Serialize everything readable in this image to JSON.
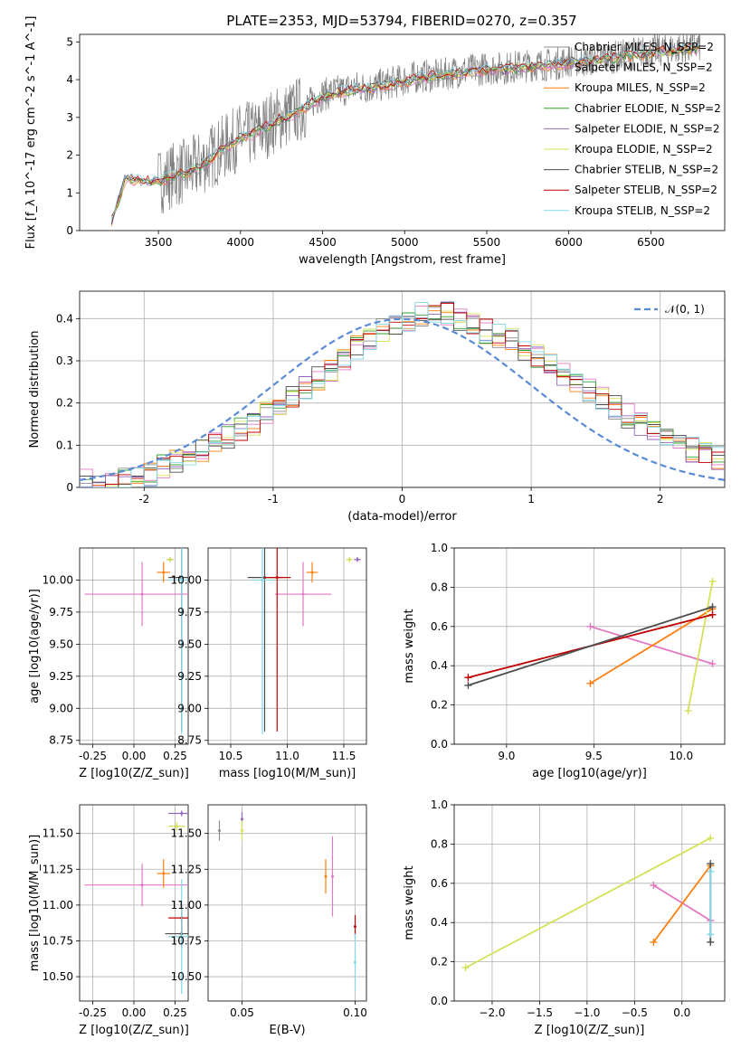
{
  "figure_title": "PLATE=2353, MJD=53794, FIBERID=0270, z=0.357",
  "series_colors": {
    "Chabrier MILES": "#8c8c8c",
    "Salpeter MILES": "#e377c2",
    "Kroupa MILES": "#ff7f0e",
    "Chabrier ELODIE": "#2ca02c",
    "Salpeter ELODIE": "#9467bd",
    "Kroupa ELODIE": "#d4e157",
    "Chabrier STELIB": "#4d4d4d",
    "Salpeter STELIB": "#c00000",
    "Kroupa STELIB": "#80d8e8"
  },
  "chart_data": [
    {
      "type": "line",
      "panel": "spectrum",
      "xlabel": "wavelength [Angstrom, rest frame]",
      "ylabel": "Flux [f_λ 10^-17 erg cm^-2 s^-1 A^-1]",
      "xlim": [
        3020,
        6950
      ],
      "ylim": [
        0,
        5.2
      ],
      "xticks": [
        3500,
        4000,
        4500,
        5000,
        5500,
        6000,
        6500
      ],
      "yticks": [
        0,
        1,
        2,
        3,
        4,
        5
      ],
      "legend_position": "right",
      "legend_entries": [
        "Chabrier MILES, N_SSP=2",
        "Salpeter MILES, N_SSP=2",
        "Kroupa MILES, N_SSP=2",
        "Chabrier ELODIE, N_SSP=2",
        "Salpeter ELODIE, N_SSP=2",
        "Kroupa ELODIE, N_SSP=2",
        "Chabrier STELIB, N_SSP=2",
        "Salpeter STELIB, N_SSP=2",
        "Kroupa STELIB, N_SSP=2"
      ],
      "data_x": [
        3200,
        3300,
        3400,
        3500,
        3600,
        3700,
        3800,
        3900,
        4000,
        4100,
        4200,
        4300,
        4400,
        4500,
        4600,
        4700,
        4800,
        4900,
        5000,
        5100,
        5200,
        5300,
        5400,
        5500,
        5600,
        5700,
        5800,
        5900,
        6000,
        6100,
        6200,
        6300,
        6400,
        6500,
        6600,
        6700,
        6800
      ],
      "data_y": [
        0,
        1.4,
        1.35,
        1.3,
        1.5,
        1.6,
        1.9,
        2.2,
        2.5,
        2.6,
        2.9,
        3.1,
        3.3,
        3.6,
        3.7,
        3.8,
        3.8,
        3.9,
        4.0,
        4.1,
        4.1,
        4.2,
        4.25,
        4.3,
        4.3,
        4.35,
        4.4,
        4.4,
        4.5,
        4.5,
        4.6,
        4.6,
        4.7,
        4.75,
        4.8,
        4.85,
        4.9
      ],
      "model_y": [
        0,
        1.4,
        1.32,
        1.28,
        1.45,
        1.55,
        1.85,
        2.15,
        2.45,
        2.6,
        2.85,
        3.05,
        3.25,
        3.55,
        3.65,
        3.75,
        3.78,
        3.85,
        3.95,
        4.05,
        4.07,
        4.15,
        4.2,
        4.25,
        4.27,
        4.3,
        4.35,
        4.36,
        4.45,
        4.47,
        4.55,
        4.57,
        4.65,
        4.7,
        4.75,
        4.8,
        4.85
      ]
    },
    {
      "type": "line",
      "panel": "residual-histogram",
      "xlabel": "(data-model)/error",
      "ylabel": "Normed distribution",
      "xlim": [
        -2.5,
        2.5
      ],
      "ylim": [
        0,
        0.465
      ],
      "xticks": [
        -2,
        -1,
        0,
        1,
        2
      ],
      "yticks": [
        0.0,
        0.1,
        0.2,
        0.3,
        0.4
      ],
      "grid": true,
      "legend_position": "top-right",
      "legend_entries": [
        "𝒩(0, 1)"
      ],
      "gaussian": {
        "mean": 0,
        "sigma": 1
      },
      "bin_width": 0.1,
      "bins_start": -2.5,
      "hist_values": [
        0.015,
        0.01,
        0.015,
        0.02,
        0.02,
        0.03,
        0.05,
        0.06,
        0.08,
        0.09,
        0.1,
        0.12,
        0.14,
        0.15,
        0.18,
        0.2,
        0.22,
        0.24,
        0.26,
        0.28,
        0.3,
        0.33,
        0.35,
        0.37,
        0.39,
        0.4,
        0.41,
        0.42,
        0.41,
        0.4,
        0.39,
        0.37,
        0.36,
        0.35,
        0.33,
        0.31,
        0.29,
        0.27,
        0.25,
        0.23,
        0.21,
        0.19,
        0.17,
        0.15,
        0.13,
        0.12,
        0.1,
        0.09,
        0.08,
        0.07
      ]
    },
    {
      "type": "scatter",
      "panel": "Z-vs-age",
      "xlabel": "Z [log10(Z/Z_sun)]",
      "ylabel": "age [log10(age/yr)]",
      "xlim": [
        -0.33,
        0.33
      ],
      "ylim": [
        8.72,
        10.25
      ],
      "xticks": [
        "-0.25",
        "0.00",
        "0.25"
      ],
      "yticks": [
        "8.75",
        "9.00",
        "9.25",
        "9.50",
        "9.75",
        "10.00"
      ],
      "grid": true,
      "points": [
        {
          "series": "Salpeter MILES",
          "x": 0.05,
          "y": 9.89,
          "xerr": 0.35,
          "yerr": 0.25
        },
        {
          "series": "Kroupa MILES",
          "x": 0.18,
          "y": 10.06,
          "xerr": 0.04,
          "yerr": 0.08
        },
        {
          "series": "Salpeter ELODIE",
          "x": 0.22,
          "y": 10.16,
          "xerr": 0.02,
          "yerr": 0.02
        },
        {
          "series": "Kroupa ELODIE",
          "x": 0.22,
          "y": 10.16,
          "xerr": 0.02,
          "yerr": 0.02
        },
        {
          "series": "Chabrier STELIB",
          "x": 0.29,
          "y": 10.02,
          "xerr": 0.08,
          "yerr": 1.2
        },
        {
          "series": "Kroupa STELIB",
          "x": 0.29,
          "y": 10.0,
          "xerr": 0.08,
          "yerr": 1.2
        }
      ]
    },
    {
      "type": "scatter",
      "panel": "mass-vs-age",
      "xlabel": "mass [log10(M/M_sun)]",
      "ylabel": "",
      "xlim": [
        10.3,
        11.7
      ],
      "ylim": [
        8.72,
        10.25
      ],
      "xticks": [
        "10.5",
        "11.0",
        "11.5"
      ],
      "yticks": [
        "8.75",
        "9.00",
        "9.25",
        "9.50",
        "9.75",
        "10.00"
      ],
      "grid": true,
      "points": [
        {
          "series": "Salpeter MILES",
          "x": 11.14,
          "y": 9.89,
          "xerr": 0.25,
          "yerr": 0.25
        },
        {
          "series": "Kroupa MILES",
          "x": 11.22,
          "y": 10.06,
          "xerr": 0.05,
          "yerr": 0.08
        },
        {
          "series": "Salpeter ELODIE",
          "x": 11.62,
          "y": 10.16,
          "xerr": 0.03,
          "yerr": 0.02
        },
        {
          "series": "Kroupa ELODIE",
          "x": 11.55,
          "y": 10.16,
          "xerr": 0.03,
          "yerr": 0.02
        },
        {
          "series": "Chabrier STELIB",
          "x": 10.8,
          "y": 10.02,
          "xerr": 0.15,
          "yerr": 1.2
        },
        {
          "series": "Salpeter STELIB",
          "x": 10.91,
          "y": 10.02,
          "xerr": 0.12,
          "yerr": 1.2
        },
        {
          "series": "Kroupa STELIB",
          "x": 10.78,
          "y": 10.0,
          "xerr": 0.1,
          "yerr": 1.2
        }
      ]
    },
    {
      "type": "line",
      "panel": "age-vs-mass-weight",
      "xlabel": "age [log10(age/yr)]",
      "ylabel": "mass weight",
      "xlim": [
        8.7,
        10.25
      ],
      "ylim": [
        0,
        1
      ],
      "xticks": [
        "9.0",
        "9.5",
        "10.0"
      ],
      "yticks": [
        "0.0",
        "0.2",
        "0.4",
        "0.6",
        "0.8",
        "1.0"
      ],
      "grid": true,
      "series": [
        {
          "series": "Salpeter MILES",
          "x": [
            9.48,
            10.18
          ],
          "y": [
            0.6,
            0.41
          ]
        },
        {
          "series": "Kroupa MILES",
          "x": [
            9.48,
            10.18
          ],
          "y": [
            0.31,
            0.69
          ]
        },
        {
          "series": "Kroupa ELODIE",
          "x": [
            10.04,
            10.18
          ],
          "y": [
            0.17,
            0.83
          ]
        },
        {
          "series": "Salpeter STELIB",
          "x": [
            8.78,
            10.18
          ],
          "y": [
            0.34,
            0.66
          ]
        },
        {
          "series": "Chabrier STELIB",
          "x": [
            8.78,
            10.18
          ],
          "y": [
            0.3,
            0.7
          ]
        }
      ]
    },
    {
      "type": "scatter",
      "panel": "Z-vs-mass",
      "xlabel": "Z [log10(Z/Z_sun)]",
      "ylabel": "mass [log10(M/M_sun)]",
      "xlim": [
        -0.33,
        0.33
      ],
      "ylim": [
        10.33,
        11.7
      ],
      "xticks": [
        "-0.25",
        "0.00",
        "0.25"
      ],
      "yticks": [
        "10.50",
        "10.75",
        "11.00",
        "11.25",
        "11.50"
      ],
      "grid": true,
      "points": [
        {
          "series": "Salpeter MILES",
          "x": 0.05,
          "y": 11.14,
          "xerr": 0.35,
          "yerr": 0.15
        },
        {
          "series": "Kroupa MILES",
          "x": 0.18,
          "y": 11.22,
          "xerr": 0.04,
          "yerr": 0.1
        },
        {
          "series": "Salpeter ELODIE",
          "x": 0.29,
          "y": 11.64,
          "xerr": 0.08,
          "yerr": 0.02
        },
        {
          "series": "Kroupa ELODIE",
          "x": 0.26,
          "y": 11.55,
          "xerr": 0.05,
          "yerr": 0.03
        },
        {
          "series": "Chabrier STELIB",
          "x": 0.29,
          "y": 10.8,
          "xerr": 0.1,
          "yerr": 0.1
        },
        {
          "series": "Salpeter STELIB",
          "x": 0.29,
          "y": 10.91,
          "xerr": 0.08,
          "yerr": 0.1
        },
        {
          "series": "Kroupa STELIB",
          "x": 0.29,
          "y": 10.78,
          "xerr": 0.08,
          "yerr": 0.4
        }
      ]
    },
    {
      "type": "scatter",
      "panel": "EBV-vs-mass",
      "xlabel": "E(B-V)",
      "ylabel": "",
      "xlim": [
        0.035,
        0.105
      ],
      "ylim": [
        10.33,
        11.7
      ],
      "xticks": [
        "0.05",
        "0.10"
      ],
      "yticks": [
        "10.50",
        "10.75",
        "11.00",
        "11.25",
        "11.50"
      ],
      "grid": true,
      "points": [
        {
          "series": "Chabrier MILES",
          "x": 0.04,
          "y": 11.52,
          "xerr": 0,
          "yerr": 0.07
        },
        {
          "series": "Salpeter ELODIE",
          "x": 0.05,
          "y": 11.6,
          "xerr": 0,
          "yerr": 0.05
        },
        {
          "series": "Kroupa ELODIE",
          "x": 0.05,
          "y": 11.52,
          "xerr": 0,
          "yerr": 0.07
        },
        {
          "series": "Kroupa MILES",
          "x": 0.087,
          "y": 11.2,
          "xerr": 0,
          "yerr": 0.12
        },
        {
          "series": "Salpeter MILES",
          "x": 0.09,
          "y": 11.2,
          "xerr": 0,
          "yerr": 0.28
        },
        {
          "series": "Salpeter STELIB",
          "x": 0.1,
          "y": 10.85,
          "xerr": 0,
          "yerr": 0.08
        },
        {
          "series": "Kroupa STELIB",
          "x": 0.1,
          "y": 10.6,
          "xerr": 0,
          "yerr": 0.2
        }
      ]
    },
    {
      "type": "line",
      "panel": "Z-vs-mass-weight",
      "xlabel": "Z [log10(Z/Z_sun)]",
      "ylabel": "mass weight",
      "xlim": [
        -2.4,
        0.45
      ],
      "ylim": [
        0,
        1
      ],
      "xticks": [
        "−2.0",
        "−1.5",
        "−1.0",
        "−0.5",
        "0.0"
      ],
      "yticks": [
        "0.0",
        "0.2",
        "0.4",
        "0.6",
        "0.8",
        "1.0"
      ],
      "grid": true,
      "series": [
        {
          "series": "Kroupa ELODIE",
          "x": [
            -2.28,
            0.3
          ],
          "y": [
            0.17,
            0.83
          ]
        },
        {
          "series": "Salpeter MILES",
          "x": [
            -0.3,
            0.3
          ],
          "y": [
            0.59,
            0.41
          ]
        },
        {
          "series": "Kroupa MILES",
          "x": [
            -0.3,
            0.3
          ],
          "y": [
            0.3,
            0.69
          ]
        },
        {
          "series": "Chabrier STELIB",
          "x": [
            0.3,
            0.3
          ],
          "y": [
            0.3,
            0.7
          ]
        },
        {
          "series": "Kroupa STELIB",
          "x": [
            0.3,
            0.3
          ],
          "y": [
            0.34,
            0.66
          ]
        }
      ]
    }
  ]
}
